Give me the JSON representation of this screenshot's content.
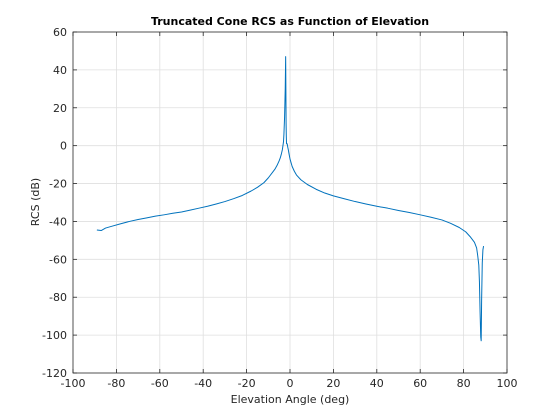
{
  "chart_data": {
    "type": "line",
    "title": "Truncated Cone RCS as Function of Elevation",
    "xlabel": "Elevation Angle (deg)",
    "ylabel": "RCS (dB)",
    "xlim": [
      -100,
      100
    ],
    "ylim": [
      -120,
      60
    ],
    "xticks": [
      -100,
      -80,
      -60,
      -40,
      -20,
      0,
      20,
      40,
      60,
      80,
      100
    ],
    "yticks": [
      -120,
      -100,
      -80,
      -60,
      -40,
      -20,
      0,
      20,
      40,
      60
    ],
    "grid": true,
    "series": [
      {
        "color": "#0072bd",
        "x": [
          -89,
          -87,
          -85,
          -82,
          -78,
          -74,
          -70,
          -66,
          -62,
          -58,
          -54,
          -50,
          -46,
          -42,
          -38,
          -34,
          -30,
          -26,
          -22,
          -18,
          -15,
          -12,
          -10,
          -8,
          -7,
          -6,
          -5,
          -4.5,
          -4,
          -3.5,
          -3,
          -2.8,
          -2.5,
          -2.2,
          -2.0,
          -1.9,
          -1.8,
          -1.7,
          -1.6,
          -1.5,
          -1.3,
          -1.0,
          -0.8,
          -0.5,
          0,
          0.5,
          1,
          2,
          3,
          5,
          8,
          12,
          16,
          20,
          25,
          30,
          35,
          40,
          45,
          50,
          55,
          60,
          65,
          70,
          74,
          78,
          81,
          83,
          85,
          86,
          86.5,
          87,
          87.3,
          87.6,
          87.9,
          88.1,
          88.3,
          88.6,
          88.9,
          89.2
        ],
        "y": [
          -44.5,
          -44.8,
          -43.5,
          -42.5,
          -41.2,
          -40,
          -39,
          -38.1,
          -37.2,
          -36.5,
          -35.7,
          -35,
          -34,
          -33,
          -32,
          -30.8,
          -29.5,
          -28,
          -26.3,
          -24,
          -22,
          -19.5,
          -17,
          -14,
          -12.5,
          -10.5,
          -8,
          -6.5,
          -4.5,
          -2,
          2,
          6,
          15,
          30,
          47,
          30,
          12,
          5,
          1,
          1,
          1,
          -1,
          -2,
          -4,
          -7,
          -9,
          -11,
          -13.5,
          -15.5,
          -18,
          -20.5,
          -23,
          -25,
          -26.5,
          -28,
          -29.5,
          -30.8,
          -32,
          -33,
          -34.2,
          -35.3,
          -36.5,
          -37.8,
          -39.2,
          -41,
          -43.2,
          -45.5,
          -48,
          -51,
          -54,
          -58,
          -63,
          -72,
          -88,
          -101,
          -103,
          -82,
          -62,
          -55,
          -53
        ]
      }
    ]
  }
}
